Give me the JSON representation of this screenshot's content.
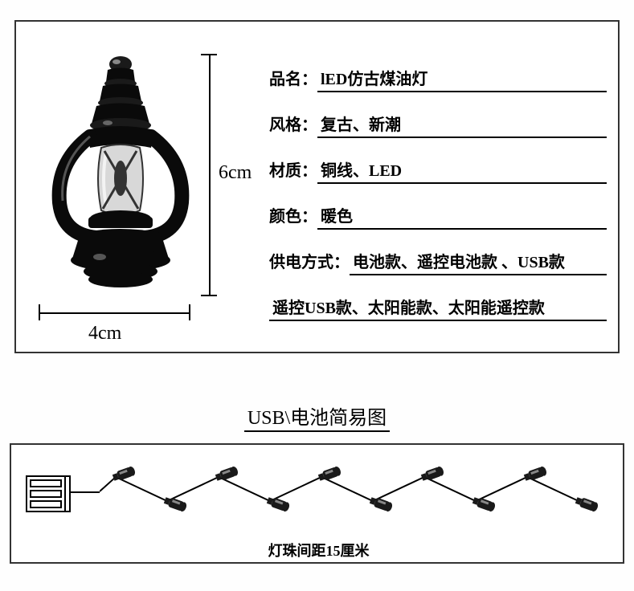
{
  "dimensions": {
    "height_label": "6cm",
    "width_label": "4cm"
  },
  "specs": [
    {
      "label": "品名：",
      "value": "lED仿古煤油灯"
    },
    {
      "label": "风格：",
      "value": "复古、新潮"
    },
    {
      "label": "材质：",
      "value": "铜线、LED"
    },
    {
      "label": "颜色：",
      "value": "暖色"
    },
    {
      "label": "供电方式：",
      "value": "电池款、遥控电池款 、USB款"
    },
    {
      "label": "",
      "value": "遥控USB款、太阳能款、太阳能遥控款"
    }
  ],
  "section_title": "USB\\电池简易图",
  "bottom_caption": "灯珠间距15厘米",
  "string_lights": {
    "bulb_count": 10,
    "colors": {
      "wire": "#000000",
      "bulb_body": "#1a1a1a",
      "bulb_highlight": "#888888"
    }
  },
  "lantern": {
    "colors": {
      "body": "#0a0a0a",
      "glass": "#cccccc",
      "highlight": "#999999"
    }
  },
  "battery": {
    "cell_count": 3,
    "colors": {
      "border": "#000000",
      "cell": "#000000"
    }
  }
}
